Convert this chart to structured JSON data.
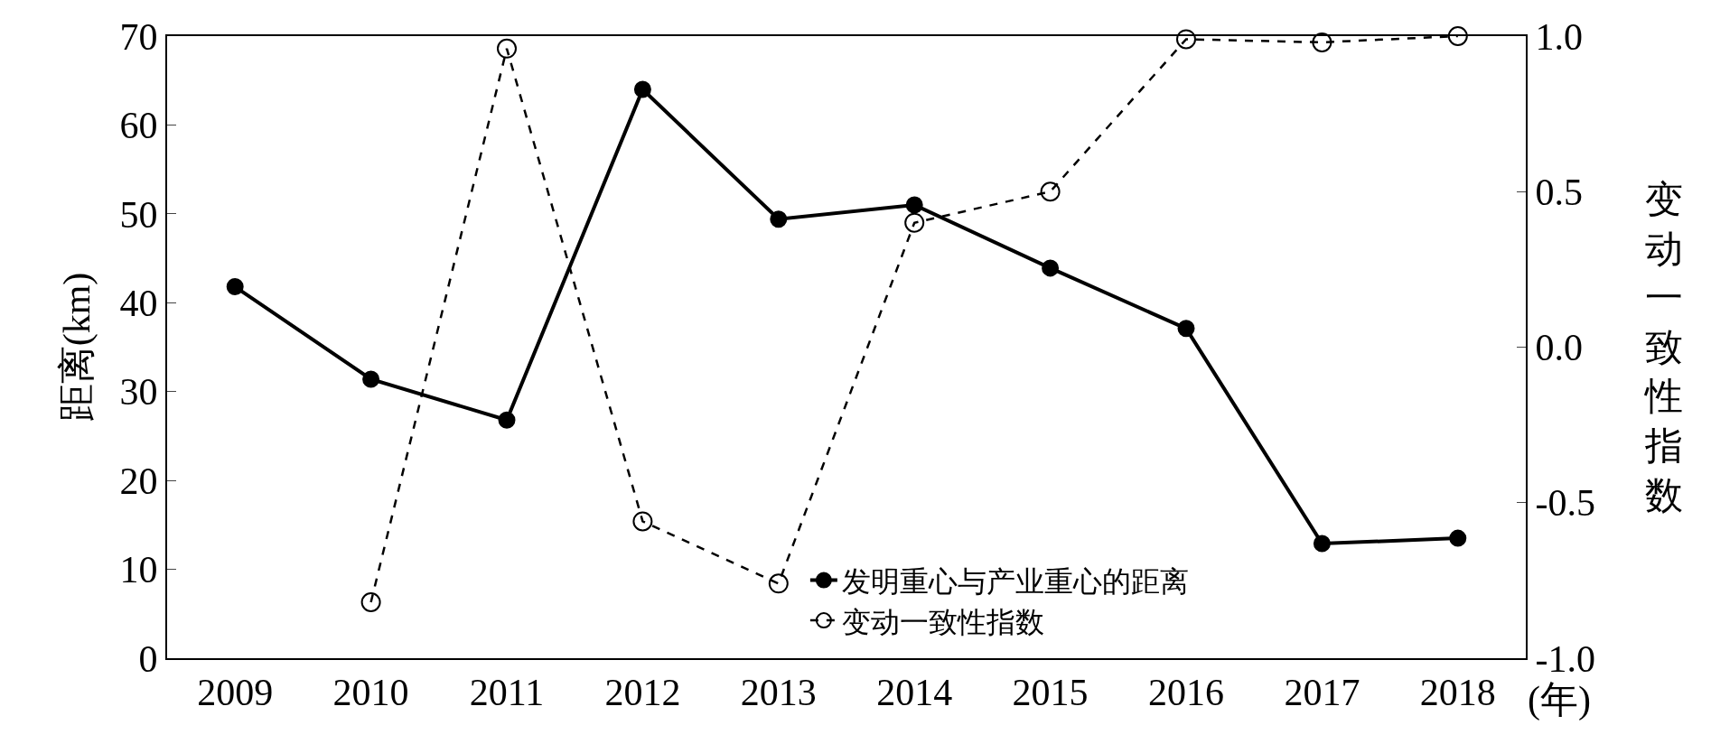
{
  "chart_data": {
    "type": "line",
    "xlabel": "(年)",
    "ylabel": "距离(km)",
    "y2label": "变动一致性指数",
    "categories": [
      "2009",
      "2010",
      "2011",
      "2012",
      "2013",
      "2014",
      "2015",
      "2016",
      "2017",
      "2018"
    ],
    "series": [
      {
        "name": "发明重心与产业重心的距离",
        "color": "#000000",
        "line_style": "solid",
        "values": [
          41.8,
          31.4,
          26.8,
          64.0,
          49.4,
          51.0,
          43.9,
          37.1,
          12.9,
          13.5
        ]
      },
      {
        "name": "变动一致性指数",
        "color": "#000000",
        "line_style": "dashed",
        "axis": "y2",
        "values": [
          null,
          -0.82,
          0.96,
          -0.56,
          -0.76,
          0.4,
          0.5,
          0.99,
          0.98,
          1.0
        ]
      }
    ],
    "ylim": [
      0,
      70
    ],
    "yticks": [
      0,
      10,
      20,
      30,
      40,
      50,
      60,
      70
    ],
    "y2lim": [
      -1.0,
      1.0
    ],
    "y2ticks": [
      {
        "value": -1.0,
        "label": "-1.0"
      },
      -0.5,
      {
        "value": 0.0,
        "label": "0.0"
      },
      0.5,
      {
        "value": 1.0,
        "label": "1.0"
      }
    ],
    "marker": "circle",
    "legend": "bottom"
  }
}
